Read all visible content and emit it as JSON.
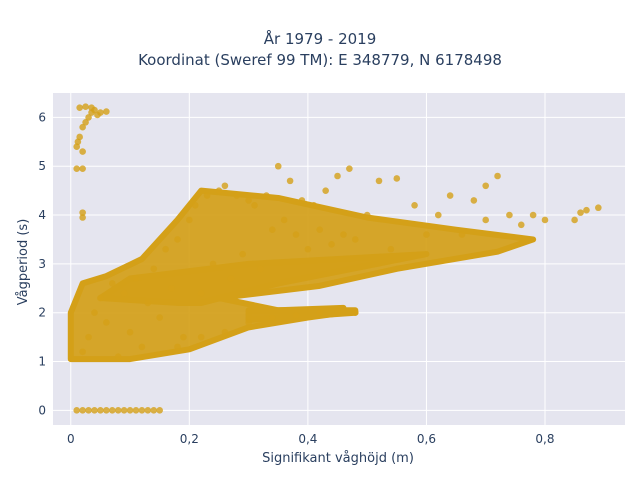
{
  "chart_data": {
    "type": "scatter",
    "title": "År 1979 - 2019",
    "subtitle": "Koordinat (Sweref 99 TM): E 348779, N 6178498",
    "xlabel": "Signifikant våghöjd (m)",
    "ylabel": "Vågperiod (s)",
    "xlim": [
      -0.03,
      0.935
    ],
    "ylim": [
      -0.3,
      6.5
    ],
    "xticks": [
      0,
      0.2,
      0.4,
      0.6,
      0.8
    ],
    "xtick_labels": [
      "0",
      "0,2",
      "0,4",
      "0,6",
      "0,8"
    ],
    "yticks": [
      0,
      1,
      2,
      3,
      4,
      5,
      6
    ],
    "ytick_labels": [
      "0",
      "1",
      "2",
      "3",
      "4",
      "5",
      "6"
    ],
    "grid": true,
    "legend": "none",
    "colors": {
      "marker": "#d4a018",
      "plot_bg": "#e5e5ef",
      "grid": "#ffffff"
    },
    "points": [
      [
        0.01,
        5.4
      ],
      [
        0.012,
        5.5
      ],
      [
        0.015,
        5.6
      ],
      [
        0.02,
        5.8
      ],
      [
        0.025,
        5.9
      ],
      [
        0.03,
        6.0
      ],
      [
        0.035,
        6.1
      ],
      [
        0.04,
        6.15
      ],
      [
        0.045,
        6.05
      ],
      [
        0.05,
        6.1
      ],
      [
        0.06,
        6.12
      ],
      [
        0.015,
        6.2
      ],
      [
        0.025,
        6.22
      ],
      [
        0.035,
        6.2
      ],
      [
        0.02,
        5.3
      ],
      [
        0.01,
        4.95
      ],
      [
        0.02,
        4.95
      ],
      [
        0.02,
        4.05
      ],
      [
        0.02,
        3.95
      ],
      [
        0.01,
        0
      ],
      [
        0.02,
        0
      ],
      [
        0.03,
        0
      ],
      [
        0.04,
        0
      ],
      [
        0.05,
        0
      ],
      [
        0.06,
        0
      ],
      [
        0.07,
        0
      ],
      [
        0.08,
        0
      ],
      [
        0.09,
        0
      ],
      [
        0.1,
        0
      ],
      [
        0.11,
        0
      ],
      [
        0.12,
        0
      ],
      [
        0.13,
        0
      ],
      [
        0.14,
        0
      ],
      [
        0.15,
        0
      ],
      [
        0.02,
        1.2
      ],
      [
        0.03,
        1.5
      ],
      [
        0.04,
        2.0
      ],
      [
        0.05,
        2.3
      ],
      [
        0.06,
        1.8
      ],
      [
        0.07,
        2.6
      ],
      [
        0.08,
        1.1
      ],
      [
        0.09,
        2.4
      ],
      [
        0.1,
        1.6
      ],
      [
        0.11,
        2.7
      ],
      [
        0.12,
        1.3
      ],
      [
        0.13,
        2.2
      ],
      [
        0.14,
        2.9
      ],
      [
        0.15,
        1.9
      ],
      [
        0.16,
        3.3
      ],
      [
        0.17,
        2.5
      ],
      [
        0.18,
        3.5
      ],
      [
        0.19,
        1.5
      ],
      [
        0.2,
        3.9
      ],
      [
        0.21,
        4.2
      ],
      [
        0.22,
        2.4
      ],
      [
        0.23,
        4.4
      ],
      [
        0.24,
        3.0
      ],
      [
        0.25,
        4.5
      ],
      [
        0.26,
        4.6
      ],
      [
        0.27,
        2.7
      ],
      [
        0.28,
        4.4
      ],
      [
        0.29,
        3.2
      ],
      [
        0.3,
        4.3
      ],
      [
        0.31,
        4.2
      ],
      [
        0.32,
        2.9
      ],
      [
        0.33,
        4.4
      ],
      [
        0.34,
        3.7
      ],
      [
        0.35,
        5.0
      ],
      [
        0.36,
        3.9
      ],
      [
        0.37,
        4.7
      ],
      [
        0.38,
        3.6
      ],
      [
        0.39,
        4.3
      ],
      [
        0.4,
        3.3
      ],
      [
        0.41,
        4.2
      ],
      [
        0.42,
        3.7
      ],
      [
        0.43,
        4.5
      ],
      [
        0.44,
        3.4
      ],
      [
        0.45,
        4.8
      ],
      [
        0.46,
        3.6
      ],
      [
        0.47,
        4.95
      ],
      [
        0.48,
        3.5
      ],
      [
        0.5,
        4.0
      ],
      [
        0.52,
        4.7
      ],
      [
        0.54,
        3.3
      ],
      [
        0.55,
        4.75
      ],
      [
        0.58,
        4.2
      ],
      [
        0.6,
        3.6
      ],
      [
        0.62,
        4.0
      ],
      [
        0.64,
        4.4
      ],
      [
        0.66,
        3.6
      ],
      [
        0.68,
        4.3
      ],
      [
        0.7,
        4.6
      ],
      [
        0.7,
        3.9
      ],
      [
        0.72,
        4.8
      ],
      [
        0.74,
        4.0
      ],
      [
        0.76,
        3.8
      ],
      [
        0.78,
        4.0
      ],
      [
        0.8,
        3.9
      ],
      [
        0.85,
        3.9
      ],
      [
        0.86,
        4.05
      ],
      [
        0.87,
        4.1
      ],
      [
        0.89,
        4.15
      ],
      [
        0.18,
        1.3
      ],
      [
        0.22,
        1.5
      ],
      [
        0.26,
        1.6
      ],
      [
        0.3,
        1.8
      ],
      [
        0.34,
        1.9
      ],
      [
        0.38,
        1.95
      ],
      [
        0.42,
        2.0
      ],
      [
        0.45,
        2.02
      ],
      [
        0.48,
        2.0
      ]
    ],
    "bands": [
      [
        [
          0.0,
          1.05
        ],
        [
          0.1,
          1.05
        ],
        [
          0.2,
          1.25
        ],
        [
          0.3,
          1.7
        ],
        [
          0.4,
          1.9
        ],
        [
          0.46,
          2.0
        ],
        [
          0.46,
          2.1
        ],
        [
          0.35,
          2.05
        ],
        [
          0.25,
          2.3
        ],
        [
          0.42,
          2.55
        ],
        [
          0.55,
          2.9
        ],
        [
          0.72,
          3.25
        ],
        [
          0.78,
          3.5
        ],
        [
          0.65,
          3.7
        ],
        [
          0.5,
          3.95
        ],
        [
          0.35,
          4.35
        ],
        [
          0.22,
          4.5
        ],
        [
          0.18,
          3.9
        ],
        [
          0.12,
          3.1
        ],
        [
          0.06,
          2.75
        ],
        [
          0.02,
          2.6
        ],
        [
          0.0,
          2.0
        ]
      ],
      [
        [
          0.3,
          1.85
        ],
        [
          0.48,
          2.0
        ],
        [
          0.48,
          2.05
        ],
        [
          0.3,
          2.05
        ]
      ],
      [
        [
          0.05,
          2.3
        ],
        [
          0.18,
          2.2
        ],
        [
          0.22,
          2.2
        ],
        [
          0.35,
          2.6
        ],
        [
          0.6,
          3.2
        ],
        [
          0.3,
          3.0
        ],
        [
          0.1,
          2.7
        ]
      ]
    ]
  }
}
